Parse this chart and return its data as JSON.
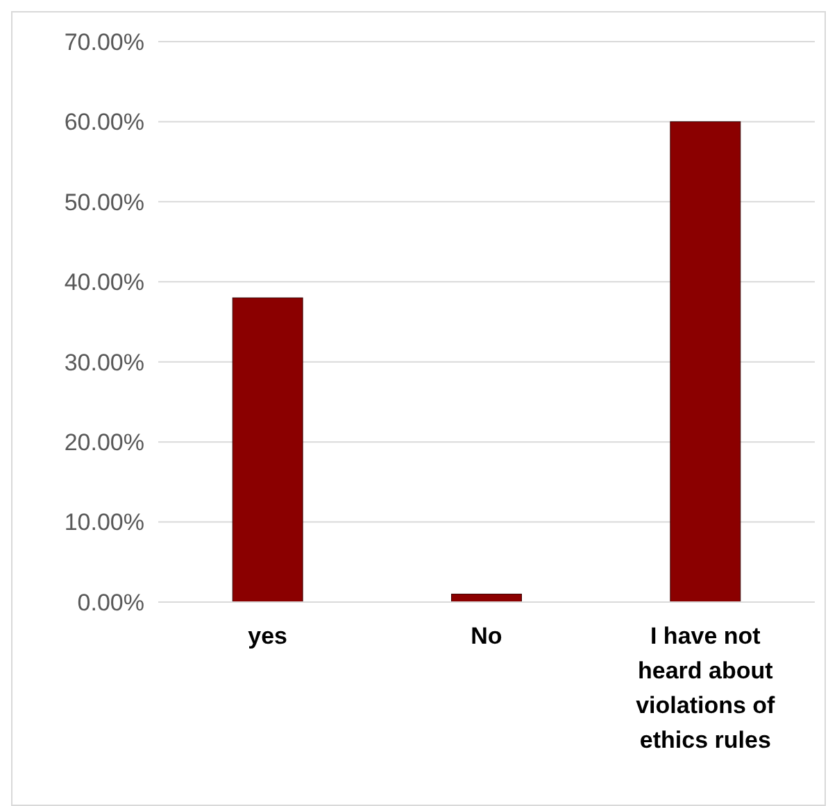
{
  "chart_data": {
    "type": "bar",
    "categories": [
      "yes",
      "No",
      "I have not heard about violations of ethics rules"
    ],
    "values": [
      38,
      1,
      60
    ],
    "color": "#8b0000",
    "ylim": [
      0,
      70
    ],
    "yticks": [
      {
        "value": 0,
        "label": "0.00%"
      },
      {
        "value": 10,
        "label": "10.00%"
      },
      {
        "value": 20,
        "label": "20.00%"
      },
      {
        "value": 30,
        "label": "30.00%"
      },
      {
        "value": 40,
        "label": "40.00%"
      },
      {
        "value": 50,
        "label": "50.00%"
      },
      {
        "value": 60,
        "label": "60.00%"
      },
      {
        "value": 70,
        "label": "70.00%"
      }
    ],
    "grid": "y"
  }
}
